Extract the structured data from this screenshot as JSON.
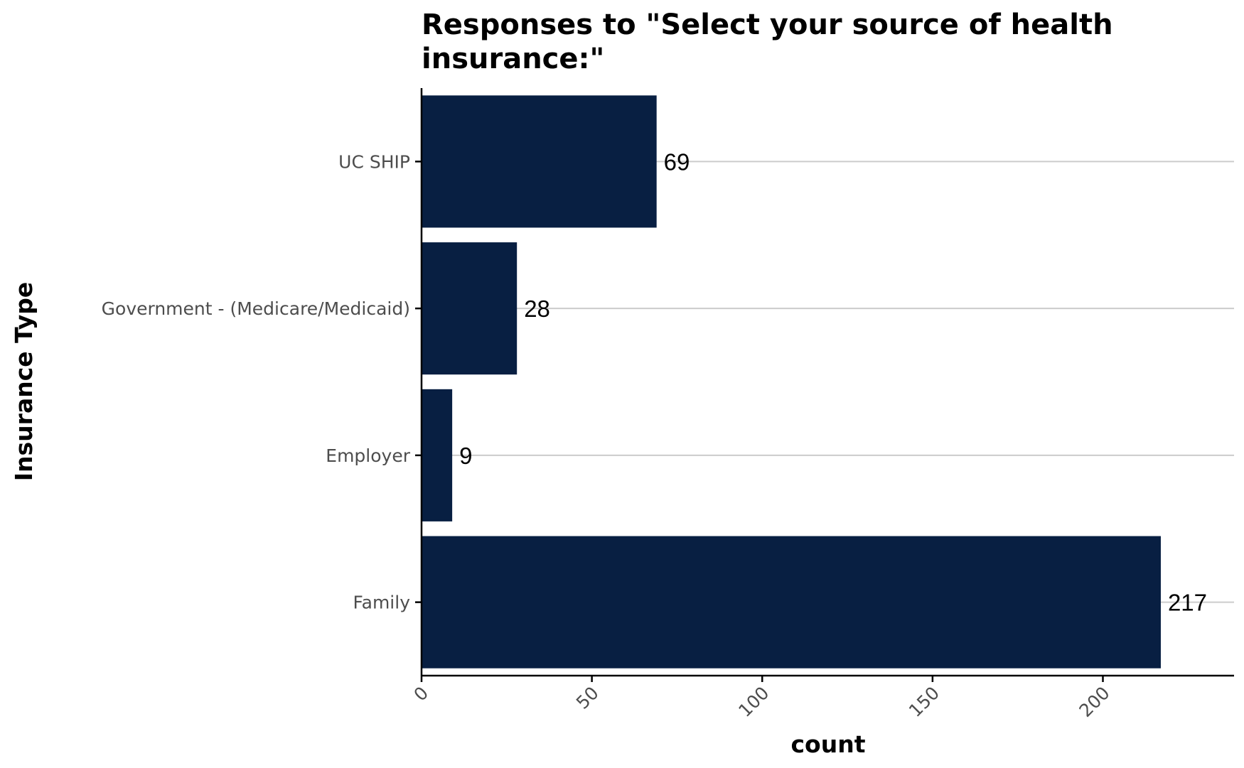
{
  "chart_data": {
    "type": "bar",
    "orientation": "horizontal",
    "title_lines": [
      "Responses to \"Select your source of health",
      "insurance:\""
    ],
    "xlabel": "count",
    "ylabel": "Insurance Type",
    "categories": [
      "UC SHIP",
      "Government - (Medicare/Medicaid)",
      "Employer",
      "Family"
    ],
    "values": [
      69,
      28,
      9,
      217
    ],
    "value_labels": [
      "69",
      "28",
      "9",
      "217"
    ],
    "xticks": [
      0,
      50,
      100,
      150,
      200
    ],
    "xtick_labels": [
      "0",
      "50",
      "100",
      "150",
      "200"
    ],
    "xlim": [
      0,
      238.5
    ],
    "grid": "horizontal major lines at each category",
    "bar_color": "#081f42",
    "grid_color": "#cccccc"
  }
}
